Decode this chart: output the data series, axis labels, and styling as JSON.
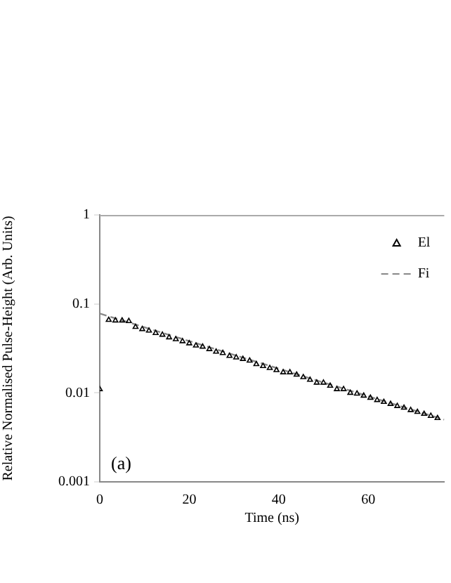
{
  "chart_data": {
    "type": "scatter",
    "xlabel": "Time (ns)",
    "ylabel": "Relative Normalised Pulse-Height (Arb. Units)",
    "annotations": [
      "(a)"
    ],
    "xlim": [
      0,
      77
    ],
    "xticks": [
      0,
      20,
      40,
      60
    ],
    "ylim": [
      0.001,
      1
    ],
    "yticks": [
      0.001,
      0.01,
      0.1,
      1
    ],
    "log": "y",
    "grid": false,
    "legend": "top right",
    "series": [
      {
        "name": "El",
        "marker": "triangle",
        "color": "#000000",
        "x": [
          0,
          2,
          3.5,
          5,
          6.5,
          8,
          9.5,
          11,
          12.5,
          14,
          15.5,
          17,
          18.5,
          20,
          21.5,
          23,
          24.5,
          26,
          27.5,
          29,
          30.5,
          32,
          33.5,
          35,
          36.5,
          38,
          39.5,
          41,
          42.5,
          44,
          45.5,
          47,
          48.5,
          50,
          51.5,
          53,
          54.5,
          56,
          57.5,
          59,
          60.5,
          62,
          63.5,
          65,
          66.5,
          68,
          69.5,
          71,
          72.5,
          74,
          75.5
        ],
        "values": [
          0.011,
          0.066,
          0.065,
          0.065,
          0.064,
          0.055,
          0.052,
          0.05,
          0.047,
          0.045,
          0.042,
          0.04,
          0.038,
          0.036,
          0.034,
          0.033,
          0.031,
          0.029,
          0.028,
          0.026,
          0.025,
          0.024,
          0.023,
          0.021,
          0.02,
          0.019,
          0.018,
          0.017,
          0.017,
          0.016,
          0.015,
          0.014,
          0.013,
          0.013,
          0.012,
          0.011,
          0.011,
          0.01,
          0.0098,
          0.0093,
          0.0088,
          0.0083,
          0.0079,
          0.0075,
          0.0071,
          0.0068,
          0.0064,
          0.0061,
          0.0058,
          0.0055,
          0.0052
        ]
      },
      {
        "name": "Fi",
        "type": "line",
        "line_style": "dashed",
        "marker": "none",
        "color": "#888888",
        "x": [
          0,
          77
        ],
        "values": [
          0.078,
          0.005
        ]
      }
    ]
  }
}
